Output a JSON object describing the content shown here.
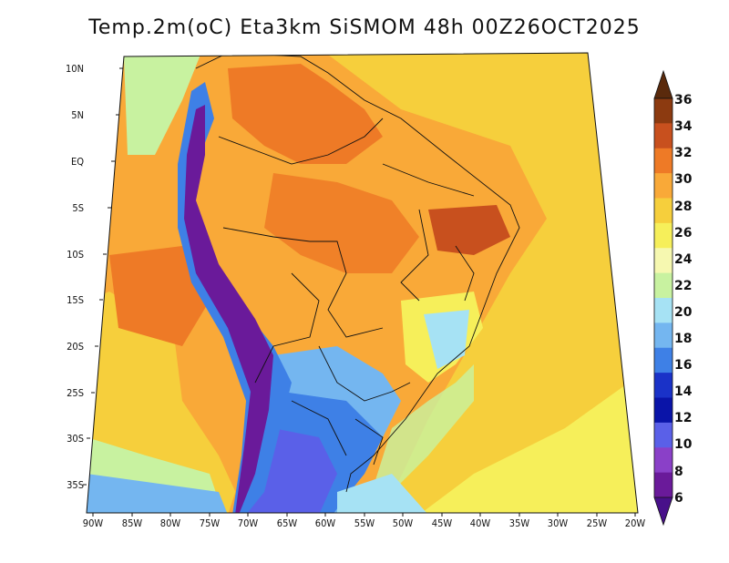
{
  "title": "Temp.2m(oC) Eta3km SiSMOM 48h 00Z26OCT2025",
  "lat_labels": [
    "10N",
    "5N",
    "EQ",
    "5S",
    "10S",
    "15S",
    "20S",
    "25S",
    "30S",
    "35S"
  ],
  "lon_labels": [
    "90W",
    "85W",
    "80W",
    "75W",
    "70W",
    "65W",
    "60W",
    "55W",
    "50W",
    "45W",
    "40W",
    "35W",
    "30W",
    "25W",
    "20W"
  ],
  "colorbar": {
    "labels": [
      "36",
      "34",
      "32",
      "30",
      "28",
      "26",
      "24",
      "22",
      "20",
      "18",
      "16",
      "14",
      "12",
      "10",
      "8",
      "6"
    ],
    "colors": [
      "#5a2a0c",
      "#8c3a10",
      "#c8501e",
      "#ee7a26",
      "#f9a938",
      "#f6cf3c",
      "#f6ef5a",
      "#f6f8b0",
      "#c8f2a0",
      "#a6e2f4",
      "#74b6f0",
      "#3e80e6",
      "#1a32c8",
      "#0a14a8",
      "#5a60e8",
      "#8a40c8",
      "#6a1a9a",
      "#48108a"
    ]
  }
}
